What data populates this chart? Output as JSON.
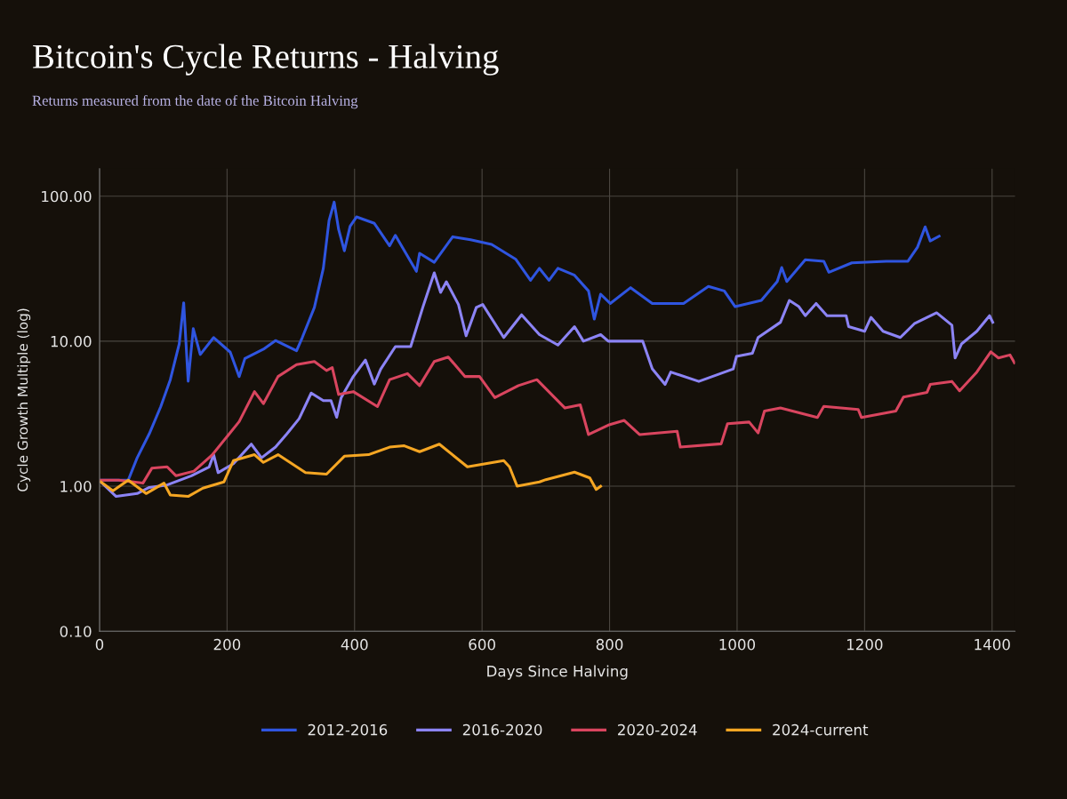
{
  "chart_data": {
    "type": "line",
    "title": "Bitcoin's Cycle Returns - Halving",
    "subtitle": "Returns measured from the date of the Bitcoin Halving",
    "xlabel": "Days Since Halving",
    "ylabel": "Cycle Growth Multiple (log)",
    "log": "y",
    "grid": true,
    "legend": "bottom",
    "marker": "none",
    "line_style": "solid",
    "xlim": [
      0,
      1436
    ],
    "xticks": [
      0,
      200,
      400,
      600,
      800,
      1000,
      1200,
      1400
    ],
    "ylim": [
      0.1,
      155
    ],
    "yticks": [
      {
        "value": 0.1,
        "label": "0.10"
      },
      {
        "value": 1,
        "label": "1.00"
      },
      {
        "value": 10,
        "label": "10.00"
      },
      {
        "value": 100,
        "label": "100.00"
      }
    ],
    "series": [
      {
        "name": "2012-2016",
        "color": "#2f55e0",
        "x": [
          2,
          45,
          59,
          78,
          96,
          111,
          125,
          132,
          139,
          147,
          158,
          179,
          205,
          219,
          228,
          257,
          276,
          309,
          318,
          337,
          351,
          360,
          368,
          375,
          384,
          393,
          403,
          431,
          455,
          464,
          497,
          502,
          525,
          554,
          582,
          615,
          653,
          676,
          690,
          705,
          719,
          745,
          767,
          776,
          786,
          801,
          833,
          867,
          916,
          955,
          980,
          997,
          1038,
          1063,
          1070,
          1078,
          1107,
          1136,
          1144,
          1180,
          1234,
          1268,
          1283,
          1295,
          1303,
          1317
        ],
        "values": [
          1.1,
          1.1,
          1.57,
          2.3,
          3.54,
          5.43,
          9.6,
          18.4,
          5.3,
          12.2,
          8.1,
          10.6,
          8.4,
          5.7,
          7.6,
          8.8,
          10.1,
          8.6,
          10.6,
          17.1,
          31.8,
          68,
          91,
          59,
          42,
          62,
          72,
          65,
          45.5,
          53.7,
          30.3,
          40.4,
          35,
          52.5,
          50,
          46.5,
          36.7,
          26.3,
          31.8,
          26.3,
          31.8,
          28.5,
          22.2,
          14.2,
          21.1,
          18.2,
          23.4,
          18.2,
          18.2,
          23.9,
          22.2,
          17.3,
          19.1,
          25.8,
          32.2,
          25.8,
          36.5,
          35.6,
          29.9,
          34.7,
          35.6,
          35.6,
          44.5,
          61.4,
          49.1,
          53
        ]
      },
      {
        "name": "2016-2020",
        "color": "#8c84f5",
        "x": [
          2,
          26,
          59,
          78,
          106,
          144,
          172,
          179,
          186,
          210,
          238,
          254,
          276,
          294,
          313,
          332,
          351,
          363,
          372,
          379,
          398,
          417,
          431,
          441,
          464,
          488,
          507,
          525,
          535,
          544,
          563,
          575,
          591,
          601,
          634,
          662,
          690,
          719,
          745,
          759,
          786,
          798,
          852,
          867,
          887,
          896,
          940,
          994,
          999,
          1024,
          1033,
          1068,
          1082,
          1097,
          1107,
          1124,
          1141,
          1171,
          1175,
          1200,
          1210,
          1229,
          1256,
          1278,
          1313,
          1337,
          1342,
          1352,
          1376,
          1396,
          1401
        ],
        "values": [
          1.07,
          0.85,
          0.89,
          0.98,
          1.02,
          1.18,
          1.36,
          1.65,
          1.24,
          1.43,
          1.95,
          1.57,
          1.86,
          2.3,
          2.92,
          4.39,
          3.89,
          3.89,
          2.99,
          4.08,
          5.71,
          7.41,
          5.06,
          6.42,
          9.18,
          9.18,
          17.1,
          29.6,
          21.7,
          25.7,
          17.9,
          10.9,
          17.1,
          17.9,
          10.6,
          15.2,
          11.1,
          9.4,
          12.6,
          10,
          11.1,
          10,
          10,
          6.44,
          5.03,
          6.13,
          5.28,
          6.44,
          7.85,
          8.25,
          10.6,
          13.5,
          19.1,
          17.3,
          15,
          18.2,
          15,
          15,
          12.6,
          11.7,
          14.6,
          11.7,
          10.6,
          13.2,
          15.7,
          12.9,
          7.66,
          9.57,
          11.7,
          15,
          13.5
        ]
      },
      {
        "name": "2020-2024",
        "color": "#d9455f",
        "x": [
          2,
          30,
          68,
          82,
          106,
          120,
          148,
          177,
          200,
          219,
          243,
          257,
          280,
          309,
          337,
          356,
          365,
          375,
          398,
          436,
          455,
          483,
          502,
          525,
          547,
          573,
          596,
          620,
          657,
          686,
          730,
          754,
          767,
          798,
          823,
          847,
          906,
          911,
          975,
          985,
          1019,
          1033,
          1043,
          1068,
          1126,
          1136,
          1190,
          1195,
          1249,
          1261,
          1298,
          1303,
          1337,
          1349,
          1376,
          1398,
          1410,
          1428,
          1435
        ],
        "values": [
          1.1,
          1.1,
          1.05,
          1.33,
          1.36,
          1.18,
          1.27,
          1.65,
          2.2,
          2.79,
          4.49,
          3.71,
          5.71,
          6.9,
          7.24,
          6.28,
          6.58,
          4.29,
          4.49,
          3.54,
          5.43,
          5.98,
          4.94,
          7.24,
          7.78,
          5.71,
          5.71,
          4.08,
          4.94,
          5.43,
          3.46,
          3.64,
          2.27,
          2.64,
          2.84,
          2.27,
          2.39,
          1.86,
          1.96,
          2.7,
          2.77,
          2.33,
          3.3,
          3.46,
          2.98,
          3.55,
          3.38,
          2.98,
          3.3,
          4.12,
          4.44,
          5.03,
          5.28,
          4.55,
          6.12,
          8.45,
          7.66,
          8.04,
          7.11
        ]
      },
      {
        "name": "2024-current",
        "color": "#f5a623",
        "x": [
          2,
          21,
          45,
          73,
          101,
          111,
          139,
          162,
          195,
          210,
          243,
          257,
          280,
          323,
          356,
          384,
          422,
          455,
          478,
          502,
          533,
          577,
          634,
          643,
          655,
          690,
          700,
          745,
          769,
          779,
          786
        ],
        "values": [
          1.07,
          0.93,
          1.1,
          0.89,
          1.05,
          0.87,
          0.85,
          0.97,
          1.07,
          1.5,
          1.65,
          1.46,
          1.65,
          1.24,
          1.21,
          1.61,
          1.65,
          1.86,
          1.9,
          1.73,
          1.95,
          1.36,
          1.5,
          1.36,
          1.0,
          1.07,
          1.11,
          1.25,
          1.14,
          0.95,
          1.0
        ]
      }
    ]
  }
}
